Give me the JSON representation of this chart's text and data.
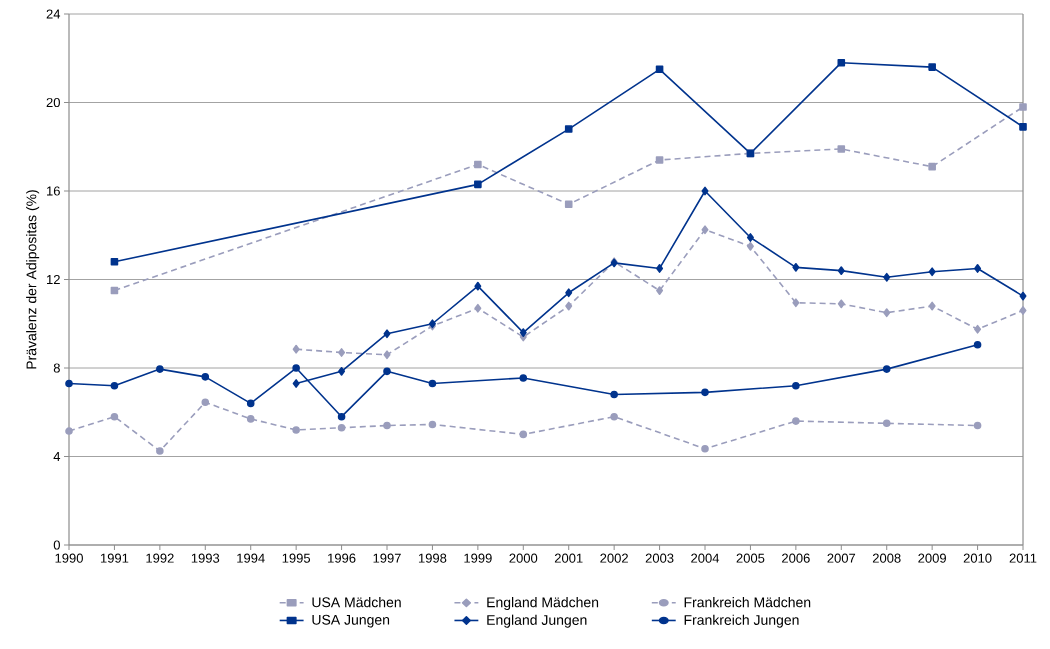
{
  "chart_data": {
    "type": "line",
    "ylabel": "Prävalenz der Adipositas (%)",
    "xlim": [
      1990,
      2011
    ],
    "xticks": [
      1990,
      1991,
      1992,
      1993,
      1994,
      1995,
      1996,
      1997,
      1998,
      1999,
      2000,
      2001,
      2002,
      2003,
      2004,
      2005,
      2006,
      2007,
      2008,
      2009,
      2010,
      2011
    ],
    "ylim": [
      0,
      24
    ],
    "yticks": [
      0,
      4,
      8,
      12,
      16,
      20,
      24
    ],
    "grid": "y",
    "legend": "bottom",
    "series": [
      {
        "name": "USA Mädchen",
        "color": "#9a9dbc",
        "marker": "square",
        "line_style": "dashed",
        "x": [
          1991,
          1999,
          2001,
          2003,
          2005,
          2007,
          2009,
          2011
        ],
        "values": [
          11.5,
          17.2,
          15.4,
          17.4,
          17.7,
          17.9,
          17.1,
          19.8
        ]
      },
      {
        "name": "England Mädchen",
        "color": "#9a9dbc",
        "marker": "diamond",
        "line_style": "dashed",
        "x": [
          1995,
          1996,
          1997,
          1998,
          1999,
          2000,
          2001,
          2002,
          2003,
          2004,
          2005,
          2006,
          2007,
          2008,
          2009,
          2010,
          2011
        ],
        "values": [
          8.85,
          8.7,
          8.6,
          9.9,
          10.7,
          9.4,
          10.8,
          12.8,
          11.5,
          14.25,
          13.5,
          10.95,
          10.9,
          10.5,
          10.8,
          9.75,
          10.6
        ]
      },
      {
        "name": "Frankreich Mädchen",
        "color": "#9a9dbc",
        "marker": "circle",
        "line_style": "dashed",
        "x": [
          1990,
          1991,
          1992,
          1993,
          1994,
          1995,
          1996,
          1997,
          1998,
          2000,
          2002,
          2004,
          2006,
          2008,
          2010
        ],
        "values": [
          5.15,
          5.8,
          4.25,
          6.45,
          5.7,
          5.2,
          5.3,
          5.4,
          5.45,
          5.0,
          5.8,
          4.35,
          5.6,
          5.5,
          5.4
        ]
      },
      {
        "name": "USA Jungen",
        "color": "#00338d",
        "marker": "square",
        "line_style": "solid",
        "x": [
          1991,
          1999,
          2001,
          2003,
          2005,
          2007,
          2009,
          2011
        ],
        "values": [
          12.8,
          16.3,
          18.8,
          21.5,
          17.7,
          21.8,
          21.6,
          18.9
        ]
      },
      {
        "name": "England Jungen",
        "color": "#00338d",
        "marker": "diamond",
        "line_style": "solid",
        "x": [
          1995,
          1996,
          1997,
          1998,
          1999,
          2000,
          2001,
          2002,
          2003,
          2004,
          2005,
          2006,
          2007,
          2008,
          2009,
          2010,
          2011
        ],
        "values": [
          7.3,
          7.85,
          9.55,
          10.0,
          11.7,
          9.6,
          11.4,
          12.75,
          12.5,
          16.0,
          13.9,
          12.55,
          12.4,
          12.1,
          12.35,
          12.5,
          11.25
        ]
      },
      {
        "name": "Frankreich Jungen",
        "color": "#00338d",
        "marker": "circle",
        "line_style": "solid",
        "x": [
          1990,
          1991,
          1992,
          1993,
          1994,
          1995,
          1996,
          1997,
          1998,
          2000,
          2002,
          2004,
          2006,
          2008,
          2010
        ],
        "values": [
          7.3,
          7.2,
          7.95,
          7.6,
          6.4,
          8.0,
          5.8,
          7.85,
          7.3,
          7.55,
          6.8,
          6.9,
          7.2,
          7.95,
          9.05
        ]
      }
    ]
  }
}
